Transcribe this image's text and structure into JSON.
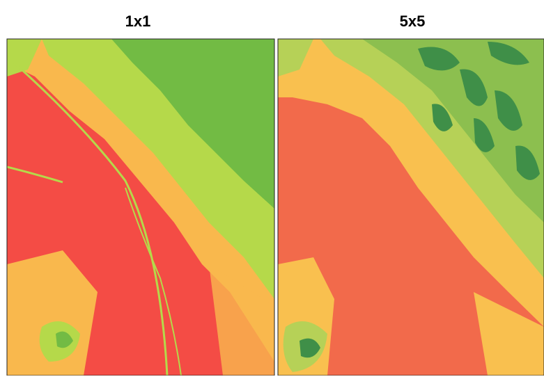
{
  "panels": [
    {
      "title": "1x1"
    },
    {
      "title": "5x5"
    }
  ]
}
